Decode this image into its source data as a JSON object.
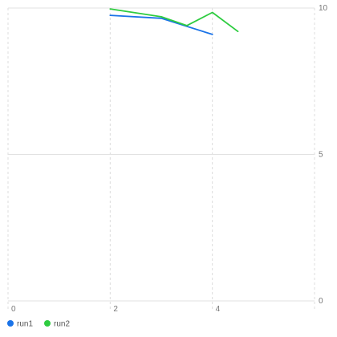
{
  "chart_data": {
    "type": "line",
    "xlim": [
      0,
      6
    ],
    "ylim": [
      0,
      10
    ],
    "x_ticks": [
      "0",
      "2",
      "4"
    ],
    "x_tick_values": [
      0,
      2,
      4
    ],
    "y_ticks": [
      "0",
      "5",
      "10"
    ],
    "y_tick_values": [
      0,
      5,
      10
    ],
    "grid": true,
    "legend_placement": "bottom-left",
    "series": [
      {
        "name": "run1",
        "color": "#1a73e8",
        "points": [
          [
            2,
            9.75
          ],
          [
            3,
            9.65
          ],
          [
            4,
            9.1
          ]
        ]
      },
      {
        "name": "run2",
        "color": "#2ecc40",
        "points": [
          [
            2,
            9.97
          ],
          [
            3,
            9.7
          ],
          [
            3.5,
            9.4
          ],
          [
            4,
            9.85
          ],
          [
            4.5,
            9.2
          ]
        ]
      }
    ]
  }
}
